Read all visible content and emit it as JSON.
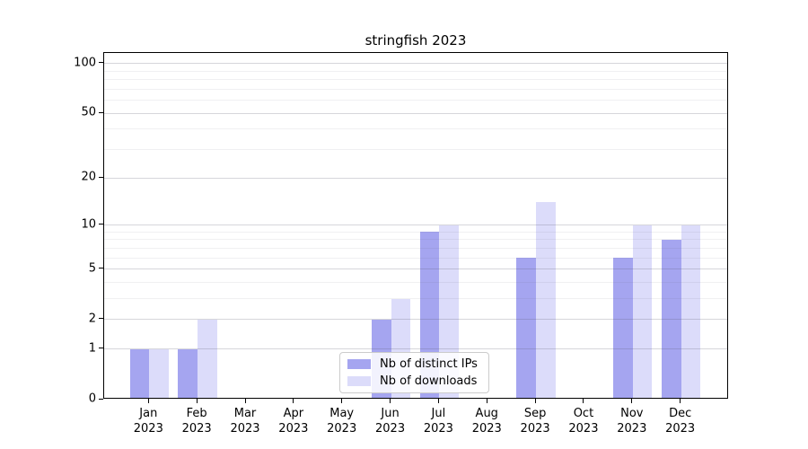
{
  "title": "stringfish 2023",
  "chart_data": {
    "type": "bar",
    "title": "stringfish 2023",
    "year": "2023",
    "months": [
      "Jan",
      "Feb",
      "Mar",
      "Apr",
      "May",
      "Jun",
      "Jul",
      "Aug",
      "Sep",
      "Oct",
      "Nov",
      "Dec"
    ],
    "categories": [
      "Jan 2023",
      "Feb 2023",
      "Mar 2023",
      "Apr 2023",
      "May 2023",
      "Jun 2023",
      "Jul 2023",
      "Aug 2023",
      "Sep 2023",
      "Oct 2023",
      "Nov 2023",
      "Dec 2023"
    ],
    "series": [
      {
        "name": "Nb of distinct IPs",
        "color": "#a5a5f0",
        "values": [
          1,
          1,
          0,
          0,
          0,
          2,
          9,
          0,
          6,
          0,
          6,
          8
        ]
      },
      {
        "name": "Nb of downloads",
        "color": "#dcdcfa",
        "values": [
          1,
          2,
          0,
          0,
          0,
          3,
          10,
          0,
          14,
          0,
          10,
          10
        ]
      }
    ],
    "xlabel": "",
    "ylabel": "",
    "yscale": "log1p",
    "yticks": [
      0,
      1,
      2,
      5,
      10,
      20,
      50,
      100
    ],
    "minor_yticks": [
      3,
      4,
      6,
      7,
      8,
      9,
      30,
      40,
      60,
      70,
      80,
      90
    ],
    "ylim": [
      0,
      116
    ],
    "grid": true,
    "legend_position": "lower center"
  },
  "colors": {
    "major_grid": "#d6d6da",
    "minor_grid": "#ededf0",
    "spine": "#000000",
    "background": "#ffffff"
  }
}
